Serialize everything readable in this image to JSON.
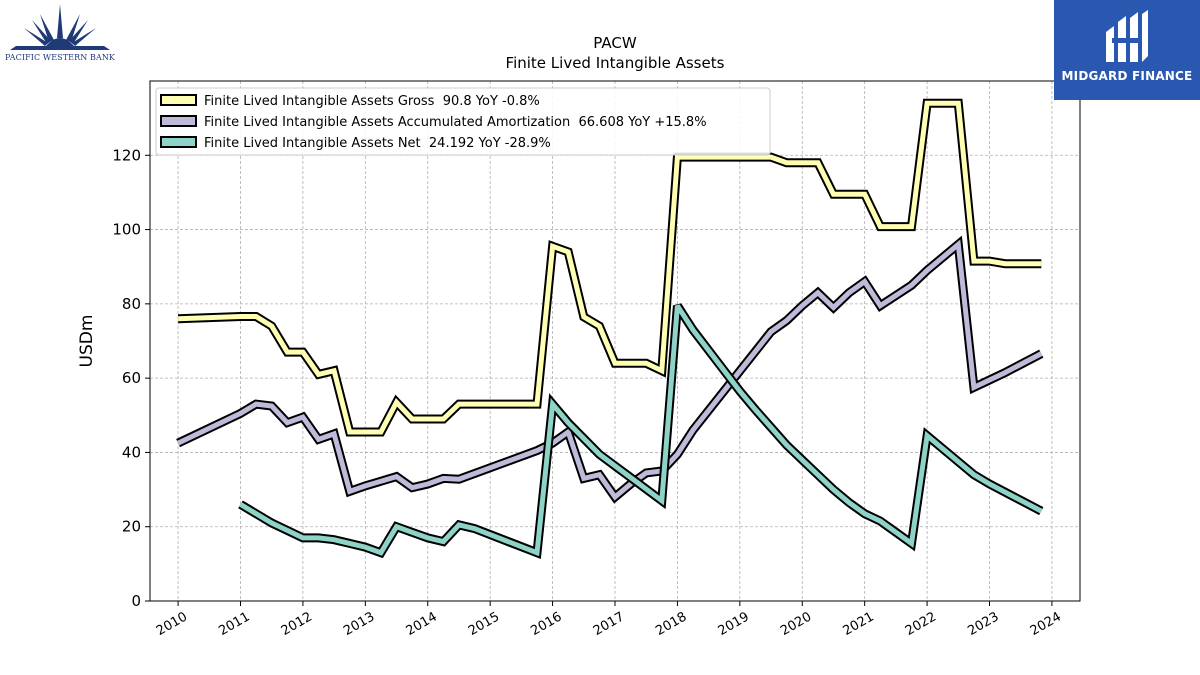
{
  "logos": {
    "left_text": "PACIFIC WESTERN BANK",
    "right_text": "MIDGARD FINANCE"
  },
  "colors": {
    "gross": "#ffffb3",
    "amortization": "#bebada",
    "net": "#8dd3c7",
    "outline": "#000000",
    "brand_blue": "#2a58b0",
    "bank_navy": "#1f3a77"
  },
  "chart_data": {
    "type": "line",
    "title": "PACW",
    "subtitle": "Finite Lived Intangible Assets",
    "xlabel": "",
    "ylabel": "USDm",
    "xlim": [
      2009.55,
      2024.45
    ],
    "ylim": [
      0,
      140
    ],
    "x_ticks": [
      "2010",
      "2011",
      "2012",
      "2013",
      "2014",
      "2015",
      "2016",
      "2017",
      "2018",
      "2019",
      "2020",
      "2021",
      "2022",
      "2023",
      "2024"
    ],
    "y_ticks": [
      "0",
      "20",
      "40",
      "60",
      "80",
      "100",
      "120"
    ],
    "grid": true,
    "legend_position": "top-left",
    "series": [
      {
        "name": "Finite Lived Intangible Assets Gross  90.8 YoY -0.8%",
        "color_key": "gross",
        "points": [
          [
            2010.0,
            76.0
          ],
          [
            2011.0,
            76.6
          ],
          [
            2011.25,
            76.6
          ],
          [
            2011.5,
            74.0
          ],
          [
            2011.75,
            67.0
          ],
          [
            2012.0,
            67.0
          ],
          [
            2012.25,
            61.0
          ],
          [
            2012.5,
            62.0
          ],
          [
            2012.75,
            45.5
          ],
          [
            2013.0,
            45.5
          ],
          [
            2013.25,
            45.5
          ],
          [
            2013.5,
            53.5
          ],
          [
            2013.75,
            49.0
          ],
          [
            2014.0,
            49.0
          ],
          [
            2014.25,
            49.0
          ],
          [
            2014.5,
            53.0
          ],
          [
            2015.75,
            53.0
          ],
          [
            2016.0,
            95.5
          ],
          [
            2016.25,
            94.0
          ],
          [
            2016.5,
            76.5
          ],
          [
            2016.75,
            74.0
          ],
          [
            2017.0,
            64.0
          ],
          [
            2017.5,
            64.0
          ],
          [
            2017.75,
            62.0
          ],
          [
            2018.0,
            119.5
          ],
          [
            2019.5,
            119.5
          ],
          [
            2019.75,
            118.0
          ],
          [
            2020.25,
            118.0
          ],
          [
            2020.5,
            109.5
          ],
          [
            2021.0,
            109.5
          ],
          [
            2021.25,
            100.8
          ],
          [
            2021.75,
            100.8
          ],
          [
            2022.0,
            134.0
          ],
          [
            2022.5,
            134.0
          ],
          [
            2022.75,
            91.5
          ],
          [
            2023.0,
            91.5
          ],
          [
            2023.25,
            90.8
          ],
          [
            2023.83,
            90.8
          ]
        ]
      },
      {
        "name": "Finite Lived Intangible Assets Accumulated Amortization  66.608 YoY +15.8%",
        "color_key": "amortization",
        "points": [
          [
            2010.0,
            42.5
          ],
          [
            2011.0,
            50.5
          ],
          [
            2011.25,
            53.0
          ],
          [
            2011.5,
            52.5
          ],
          [
            2011.75,
            48.0
          ],
          [
            2012.0,
            49.5
          ],
          [
            2012.25,
            43.5
          ],
          [
            2012.5,
            45.0
          ],
          [
            2012.75,
            29.5
          ],
          [
            2013.0,
            31.0
          ],
          [
            2013.5,
            33.5
          ],
          [
            2013.75,
            30.5
          ],
          [
            2014.0,
            31.5
          ],
          [
            2014.25,
            33.0
          ],
          [
            2014.5,
            32.8
          ],
          [
            2015.75,
            40.5
          ],
          [
            2016.0,
            42.5
          ],
          [
            2016.25,
            45.5
          ],
          [
            2016.5,
            33.0
          ],
          [
            2016.75,
            34.0
          ],
          [
            2017.0,
            28.0
          ],
          [
            2017.25,
            31.5
          ],
          [
            2017.5,
            34.5
          ],
          [
            2017.75,
            35.0
          ],
          [
            2018.0,
            39.5
          ],
          [
            2018.25,
            46.0
          ],
          [
            2019.5,
            72.5
          ],
          [
            2019.75,
            75.5
          ],
          [
            2020.0,
            79.5
          ],
          [
            2020.25,
            83.0
          ],
          [
            2020.5,
            79.0
          ],
          [
            2020.75,
            83.0
          ],
          [
            2021.0,
            86.0
          ],
          [
            2021.25,
            79.5
          ],
          [
            2021.75,
            85.0
          ],
          [
            2022.0,
            89.0
          ],
          [
            2022.5,
            96.0
          ],
          [
            2022.75,
            57.5
          ],
          [
            2023.0,
            59.5
          ],
          [
            2023.25,
            61.5
          ],
          [
            2023.83,
            66.608
          ]
        ]
      },
      {
        "name": "Finite Lived Intangible Assets Net  24.192 YoY -28.9%",
        "color_key": "net",
        "points": [
          [
            2011.0,
            26.0
          ],
          [
            2011.25,
            23.5
          ],
          [
            2011.5,
            21.0
          ],
          [
            2011.75,
            19.0
          ],
          [
            2012.0,
            17.0
          ],
          [
            2012.25,
            17.0
          ],
          [
            2012.5,
            16.5
          ],
          [
            2012.75,
            15.5
          ],
          [
            2013.0,
            14.5
          ],
          [
            2013.25,
            13.0
          ],
          [
            2013.5,
            20.0
          ],
          [
            2013.75,
            18.5
          ],
          [
            2014.0,
            17.0
          ],
          [
            2014.25,
            16.0
          ],
          [
            2014.5,
            20.5
          ],
          [
            2014.75,
            19.5
          ],
          [
            2015.75,
            13.0
          ],
          [
            2016.0,
            53.0
          ],
          [
            2016.25,
            48.0
          ],
          [
            2016.75,
            39.5
          ],
          [
            2017.75,
            27.0
          ],
          [
            2018.0,
            79.5
          ],
          [
            2018.25,
            73.0
          ],
          [
            2018.75,
            62.0
          ],
          [
            2019.0,
            56.5
          ],
          [
            2019.25,
            51.5
          ],
          [
            2019.75,
            42.0
          ],
          [
            2020.0,
            38.0
          ],
          [
            2020.5,
            30.0
          ],
          [
            2020.75,
            26.5
          ],
          [
            2021.0,
            23.5
          ],
          [
            2021.25,
            21.5
          ],
          [
            2021.75,
            15.5
          ],
          [
            2022.0,
            44.5
          ],
          [
            2022.25,
            41.0
          ],
          [
            2022.75,
            34.0
          ],
          [
            2023.0,
            31.5
          ],
          [
            2023.83,
            24.192
          ]
        ]
      }
    ]
  }
}
